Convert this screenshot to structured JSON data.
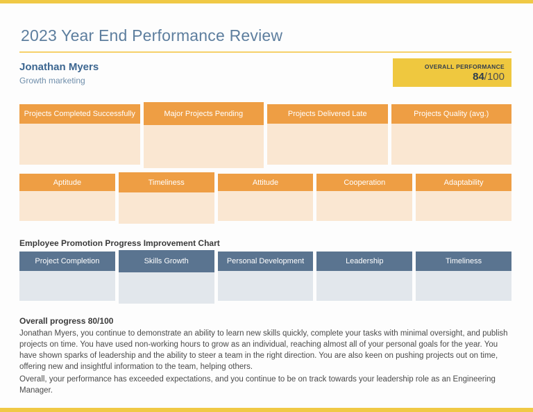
{
  "page": {
    "title": "2023 Year End Performance Review"
  },
  "employee": {
    "name": "Jonathan Myers",
    "role": "Growth marketing"
  },
  "overall_performance": {
    "label": "OVERALL PERFORMANCE",
    "score": "84",
    "denominator": "/100"
  },
  "project_stats": {
    "columns": [
      "Projects Completed Successfully",
      "Major Projects Pending",
      "Projects Delivered Late",
      "Projects Quality (avg.)"
    ]
  },
  "attributes": {
    "columns": [
      "Aptitude",
      "Timeliness",
      "Attitude",
      "Cooperation",
      "Adaptability"
    ]
  },
  "promotion_chart": {
    "heading": "Employee Promotion Progress Improvement Chart",
    "columns": [
      "Project Completion",
      "Skills Growth",
      "Personal Development",
      "Leadership",
      "Timeliness"
    ]
  },
  "summary": {
    "heading": "Overall progress 80/100",
    "paragraph1": "Jonathan Myers, you continue to demonstrate an ability to learn new skills quickly, complete your tasks with minimal oversight, and publish projects on time. You have used non-working hours to grow as an individual, reaching almost all of your personal goals for the year. You have shown sparks of leadership and the ability to steer a team in the right direction. You are also keen on pushing projects out on time, offering new and insightful information to the team, helping others.",
    "paragraph2": "Overall, your performance has exceeded expectations, and you continue to be on track towards your leadership role as an Engineering Manager."
  },
  "colors": {
    "accent_yellow": "#f0c945",
    "badge_yellow": "#efc83f",
    "orange_header": "#ee9e44",
    "orange_body": "#fae7d2",
    "blue_header": "#5a7490",
    "blue_body": "#e2e7ec",
    "title_blue": "#5d7e9e"
  }
}
